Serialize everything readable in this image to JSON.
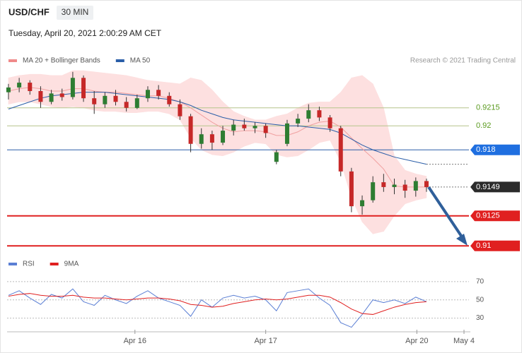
{
  "header": {
    "symbol": "USD/CHF",
    "interval": "30 MIN",
    "timestamp": "Tuesday, April 20, 2021 2:00:29 AM CET",
    "credit": "Research © 2021 Trading Central"
  },
  "chart_data": [
    {
      "type": "candlestick",
      "legend": [
        {
          "name": "MA 20 + Bollinger Bands",
          "color": "#f08a8a"
        },
        {
          "name": "MA 50",
          "color": "#2a5ea8"
        }
      ],
      "candles": [
        [
          0.9228,
          0.9235,
          0.9222,
          0.9232
        ],
        [
          0.9232,
          0.924,
          0.9228,
          0.9236
        ],
        [
          0.9236,
          0.9238,
          0.9226,
          0.9229
        ],
        [
          0.9229,
          0.9233,
          0.9215,
          0.922
        ],
        [
          0.922,
          0.923,
          0.9218,
          0.9227
        ],
        [
          0.9227,
          0.9231,
          0.9221,
          0.9224
        ],
        [
          0.9224,
          0.9245,
          0.9222,
          0.924
        ],
        [
          0.924,
          0.9242,
          0.922,
          0.9223
        ],
        [
          0.9223,
          0.9229,
          0.921,
          0.9218
        ],
        [
          0.9218,
          0.9228,
          0.9215,
          0.9225
        ],
        [
          0.9225,
          0.923,
          0.9217,
          0.922
        ],
        [
          0.922,
          0.9224,
          0.9212,
          0.9215
        ],
        [
          0.9215,
          0.9226,
          0.9214,
          0.9223
        ],
        [
          0.9223,
          0.9233,
          0.922,
          0.923
        ],
        [
          0.923,
          0.9234,
          0.9222,
          0.9225
        ],
        [
          0.9225,
          0.9228,
          0.9216,
          0.9218
        ],
        [
          0.9218,
          0.9222,
          0.9205,
          0.9208
        ],
        [
          0.9208,
          0.921,
          0.9178,
          0.9185
        ],
        [
          0.9185,
          0.9198,
          0.9181,
          0.9193
        ],
        [
          0.9193,
          0.9196,
          0.918,
          0.9186
        ],
        [
          0.9186,
          0.92,
          0.9184,
          0.9196
        ],
        [
          0.9196,
          0.9205,
          0.9192,
          0.9201
        ],
        [
          0.9201,
          0.9206,
          0.9196,
          0.9198
        ],
        [
          0.9198,
          0.9203,
          0.9194,
          0.92
        ],
        [
          0.92,
          0.9202,
          0.919,
          0.9194
        ],
        [
          0.917,
          0.918,
          0.9168,
          0.9178
        ],
        [
          0.9185,
          0.9205,
          0.9183,
          0.9202
        ],
        [
          0.9202,
          0.921,
          0.9199,
          0.9206
        ],
        [
          0.9206,
          0.9218,
          0.9203,
          0.9213
        ],
        [
          0.9213,
          0.9216,
          0.9204,
          0.9207
        ],
        [
          0.9207,
          0.9209,
          0.9195,
          0.9198
        ],
        [
          0.9198,
          0.92,
          0.9158,
          0.9162
        ],
        [
          0.9162,
          0.9165,
          0.9128,
          0.9133
        ],
        [
          0.9133,
          0.9142,
          0.9126,
          0.9138
        ],
        [
          0.9138,
          0.9158,
          0.9136,
          0.9153
        ],
        [
          0.9153,
          0.916,
          0.9145,
          0.9149
        ],
        [
          0.9149,
          0.9156,
          0.9143,
          0.9151
        ],
        [
          0.9151,
          0.9155,
          0.914,
          0.9146
        ],
        [
          0.9146,
          0.9157,
          0.9141,
          0.9154
        ],
        [
          0.9154,
          0.9156,
          0.9145,
          0.9149
        ]
      ],
      "up_color": "#2e7d32",
      "down_color": "#c62828",
      "upper": [
        0.924,
        0.9242,
        0.9243,
        0.9243,
        0.9242,
        0.9242,
        0.9246,
        0.9246,
        0.9245,
        0.9244,
        0.9243,
        0.9242,
        0.924,
        0.9238,
        0.9237,
        0.9236,
        0.9235,
        0.924,
        0.9238,
        0.923,
        0.922,
        0.9212,
        0.9208,
        0.9205,
        0.9205,
        0.9208,
        0.921,
        0.9215,
        0.9219,
        0.922,
        0.922,
        0.9228,
        0.924,
        0.9242,
        0.9235,
        0.9215,
        0.9175,
        0.9163,
        0.916,
        0.9158
      ],
      "lower": [
        0.9218,
        0.922,
        0.922,
        0.9218,
        0.9216,
        0.9215,
        0.9216,
        0.9215,
        0.9213,
        0.9212,
        0.9212,
        0.9211,
        0.9211,
        0.9212,
        0.9212,
        0.921,
        0.9205,
        0.919,
        0.918,
        0.9176,
        0.9175,
        0.9178,
        0.9183,
        0.9186,
        0.9185,
        0.9176,
        0.9174,
        0.9175,
        0.918,
        0.9186,
        0.9188,
        0.917,
        0.914,
        0.912,
        0.911,
        0.9112,
        0.9125,
        0.9135,
        0.9138,
        0.914
      ],
      "ma20": [
        0.9229,
        0.9231,
        0.9232,
        0.9231,
        0.9229,
        0.9229,
        0.9231,
        0.9231,
        0.9229,
        0.9228,
        0.9228,
        0.9227,
        0.9226,
        0.9225,
        0.9225,
        0.9223,
        0.922,
        0.9215,
        0.9209,
        0.9203,
        0.9198,
        0.9195,
        0.9196,
        0.9196,
        0.9195,
        0.9192,
        0.9192,
        0.9195,
        0.92,
        0.9203,
        0.9204,
        0.9199,
        0.919,
        0.9181,
        0.9173,
        0.9164,
        0.915,
        0.9149,
        0.9149,
        0.9149
      ],
      "ma50": [
        0.9214,
        0.9217,
        0.922,
        0.9223,
        0.9225,
        0.9226,
        0.9227,
        0.9228,
        0.9228,
        0.9228,
        0.9227,
        0.9226,
        0.9225,
        0.9224,
        0.9223,
        0.9222,
        0.922,
        0.9217,
        0.9213,
        0.921,
        0.9207,
        0.9205,
        0.9204,
        0.9203,
        0.9202,
        0.9201,
        0.92,
        0.92,
        0.9199,
        0.9198,
        0.9197,
        0.9194,
        0.9189,
        0.9184,
        0.918,
        0.9177,
        0.9174,
        0.9172,
        0.917,
        0.9168
      ],
      "ylim": [
        0.9096,
        0.9249
      ],
      "levels": [
        {
          "value": 0.9215,
          "color": "#b5c48a",
          "text_color": "#5a9a1e"
        },
        {
          "value": 0.92,
          "color": "#b5c48a",
          "text_color": "#5a9a1e"
        },
        {
          "value": 0.918,
          "color": "#2a5ea8",
          "tag": "#1f6fe0"
        },
        {
          "value": 0.9149,
          "color": "#777777",
          "tag": "#2b2b2b",
          "dotted": true
        },
        {
          "value": 0.9125,
          "color": "#e02020",
          "tag": "#e02020"
        },
        {
          "value": 0.91,
          "color": "#e02020",
          "tag": "#e02020"
        }
      ]
    },
    {
      "type": "line",
      "legend": [
        {
          "name": "RSI",
          "color": "#5b7fd4"
        },
        {
          "name": "9MA",
          "color": "#e02020"
        }
      ],
      "series": [
        {
          "name": "RSI",
          "color": "#5b7fd4",
          "values": [
            55,
            60,
            52,
            45,
            56,
            52,
            62,
            48,
            44,
            55,
            50,
            46,
            54,
            60,
            52,
            48,
            44,
            32,
            50,
            42,
            52,
            55,
            52,
            54,
            50,
            38,
            58,
            60,
            62,
            52,
            44,
            25,
            20,
            34,
            50,
            47,
            50,
            46,
            53,
            48
          ]
        },
        {
          "name": "9MA",
          "color": "#e02020",
          "values": [
            54,
            56,
            57,
            55,
            54,
            54,
            55,
            53,
            52,
            52,
            51,
            50,
            51,
            52,
            52,
            51,
            49,
            45,
            44,
            42,
            43,
            46,
            48,
            50,
            51,
            50,
            51,
            53,
            55,
            55,
            53,
            47,
            40,
            35,
            34,
            38,
            42,
            45,
            47,
            48
          ]
        }
      ],
      "ylim": [
        15,
        73
      ],
      "yticks": [
        30,
        50,
        70
      ],
      "xlim": [
        -0.13,
        42.5
      ],
      "xticks": [
        {
          "value": 11.8,
          "label": "Apr 16"
        },
        {
          "value": 24,
          "label": "Apr 17"
        },
        {
          "value": 38.1,
          "label": "Apr 20"
        },
        {
          "value": 42.5,
          "label": "May 4"
        }
      ]
    }
  ]
}
